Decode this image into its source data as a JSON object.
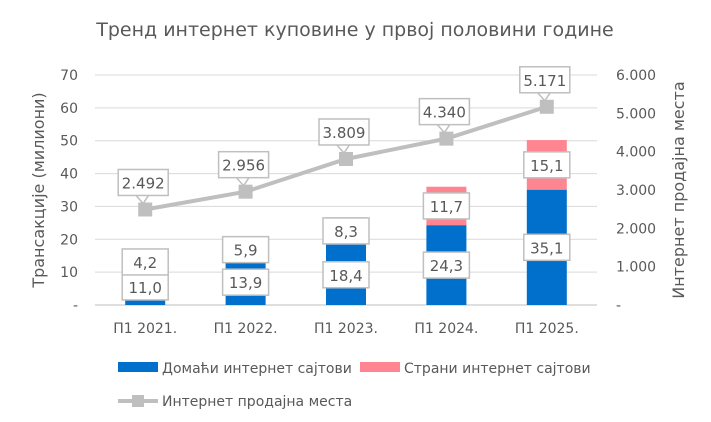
{
  "chart_data": {
    "type": "bar",
    "title": "Тренд интернет куповине у првој половини године",
    "categories": [
      "П1 2021.",
      "П1 2022.",
      "П1 2023.",
      "П1 2024.",
      "П1 2025."
    ],
    "ylabel": "Трансакције (милиони)",
    "y2label": "Интернет продајна места",
    "ylim": [
      0,
      70
    ],
    "y2lim": [
      0,
      6000
    ],
    "yticks": [
      "-",
      "10",
      "20",
      "30",
      "40",
      "50",
      "60",
      "70"
    ],
    "y2ticks": [
      "-",
      "1.000",
      "2.000",
      "3.000",
      "4.000",
      "5.000",
      "6.000"
    ],
    "grid": true,
    "legend_position": "bottom",
    "series": [
      {
        "name": "Домаћи интернет сајтови",
        "kind": "stacked-bar",
        "color": "#0070CC",
        "values": [
          11.0,
          13.9,
          18.4,
          24.3,
          35.1
        ],
        "labels": [
          "11,0",
          "13,9",
          "18,4",
          "24,3",
          "35,1"
        ]
      },
      {
        "name": "Страни интернет сајтови",
        "kind": "stacked-bar",
        "color": "#FF8591",
        "values": [
          4.2,
          5.9,
          8.3,
          11.7,
          15.1
        ],
        "labels": [
          "4,2",
          "5,9",
          "8,3",
          "11,7",
          "15,1"
        ]
      },
      {
        "name": "Интернет продајна места",
        "kind": "line",
        "axis": "right",
        "color": "#BFBFBF",
        "values": [
          2492,
          2956,
          3809,
          4340,
          5171
        ],
        "labels": [
          "2.492",
          "2.956",
          "3.809",
          "4.340",
          "5.171"
        ]
      }
    ]
  }
}
